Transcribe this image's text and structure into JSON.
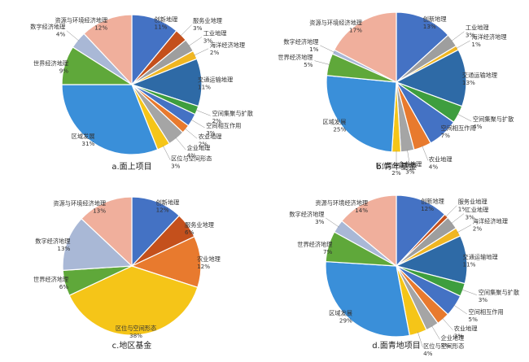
{
  "chart_data": [
    {
      "type": "pie",
      "title": "a.面上项目",
      "slices": [
        {
          "name": "创新地理",
          "value": 11,
          "pct": "11%",
          "color": "#4472C4"
        },
        {
          "name": "服务业地理",
          "value": 3,
          "pct": "3%",
          "color": "#C4501C"
        },
        {
          "name": "工业地理",
          "value": 3,
          "pct": "3%",
          "color": "#9E9E9E"
        },
        {
          "name": "海洋经济地理",
          "value": 2,
          "pct": "2%",
          "color": "#F0B622"
        },
        {
          "name": "交通运输地理",
          "value": 11,
          "pct": "11%",
          "color": "#2E6AA6"
        },
        {
          "name": "空间集聚与扩散",
          "value": 2,
          "pct": "2%",
          "color": "#3E9E3E"
        },
        {
          "name": "空间相互作用",
          "value": 3,
          "pct": "3%",
          "color": "#4472C4"
        },
        {
          "name": "农业地理",
          "value": 2,
          "pct": "2%",
          "color": "#E87A2E"
        },
        {
          "name": "企业地理",
          "value": 4,
          "pct": "4%",
          "color": "#A5A5A5"
        },
        {
          "name": "区位与空间形态",
          "value": 3,
          "pct": "3%",
          "color": "#F5C518"
        },
        {
          "name": "区域发展",
          "value": 31,
          "pct": "31%",
          "color": "#3A8FD9"
        },
        {
          "name": "世界经济地理",
          "value": 9,
          "pct": "9%",
          "color": "#5FA83A"
        },
        {
          "name": "数字经济地理",
          "value": 4,
          "pct": "4%",
          "color": "#A9B8D6"
        },
        {
          "name": "资源与环境经济地理",
          "value": 12,
          "pct": "12%",
          "color": "#F0AF9C"
        }
      ]
    },
    {
      "type": "pie",
      "title": "b.青年基金",
      "slices": [
        {
          "name": "创新地理",
          "value": 13,
          "pct": "13%",
          "color": "#4472C4"
        },
        {
          "name": "工业地理",
          "value": 3,
          "pct": "3%",
          "color": "#9E9E9E"
        },
        {
          "name": "海洋经济地理",
          "value": 1,
          "pct": "1%",
          "color": "#F0B622"
        },
        {
          "name": "交通运输地理",
          "value": 13,
          "pct": "13%",
          "color": "#2E6AA6"
        },
        {
          "name": "空间集聚与扩散",
          "value": 4,
          "pct": "4%",
          "color": "#3E9E3E"
        },
        {
          "name": "空间相互作用",
          "value": 7,
          "pct": "7%",
          "color": "#4472C4"
        },
        {
          "name": "农业地理",
          "value": 4,
          "pct": "4%",
          "color": "#E87A2E"
        },
        {
          "name": "企业地理",
          "value": 3,
          "pct": "3%",
          "color": "#A5A5A5"
        },
        {
          "name": "区位与空间形态",
          "value": 2,
          "pct": "2%",
          "color": "#F5C518"
        },
        {
          "name": "区域发展",
          "value": 25,
          "pct": "25%",
          "color": "#3A8FD9"
        },
        {
          "name": "世界经济地理",
          "value": 5,
          "pct": "5%",
          "color": "#5FA83A"
        },
        {
          "name": "数字经济地理",
          "value": 1,
          "pct": "1%",
          "color": "#A9B8D6"
        },
        {
          "name": "资源与环境经济地理",
          "value": 17,
          "pct": "17%",
          "color": "#F0AF9C"
        }
      ]
    },
    {
      "type": "pie",
      "title": "c.地区基金",
      "slices": [
        {
          "name": "创新地理",
          "value": 12,
          "pct": "12%",
          "color": "#4472C4"
        },
        {
          "name": "服务业地理",
          "value": 6,
          "pct": "6%",
          "color": "#C4501C"
        },
        {
          "name": "农业地理",
          "value": 12,
          "pct": "12%",
          "color": "#E87A2E"
        },
        {
          "name": "区位与空间形态",
          "value": 38,
          "pct": "38%",
          "color": "#F5C518"
        },
        {
          "name": "世界经济地理",
          "value": 6,
          "pct": "6%",
          "color": "#5FA83A"
        },
        {
          "name": "数字经济地理",
          "value": 13,
          "pct": "13%",
          "color": "#A9B8D6"
        },
        {
          "name": "资源与环境经济地理",
          "value": 13,
          "pct": "13%",
          "color": "#F0AF9C"
        }
      ]
    },
    {
      "type": "pie",
      "title": "d.面青地项目",
      "slices": [
        {
          "name": "创新地理",
          "value": 12,
          "pct": "12%",
          "color": "#4472C4"
        },
        {
          "name": "服务业地理",
          "value": 1,
          "pct": "1%",
          "color": "#C4501C"
        },
        {
          "name": "工业地理",
          "value": 3,
          "pct": "3%",
          "color": "#9E9E9E"
        },
        {
          "name": "海洋经济地理",
          "value": 2,
          "pct": "2%",
          "color": "#F0B622"
        },
        {
          "name": "交通运输地理",
          "value": 11,
          "pct": "11%",
          "color": "#2E6AA6"
        },
        {
          "name": "空间集聚与扩散",
          "value": 3,
          "pct": "3%",
          "color": "#3E9E3E"
        },
        {
          "name": "空间相互作用",
          "value": 5,
          "pct": "5%",
          "color": "#4472C4"
        },
        {
          "name": "农业地理",
          "value": 3,
          "pct": "3%",
          "color": "#E87A2E"
        },
        {
          "name": "企业地理",
          "value": 3,
          "pct": "3%",
          "color": "#A5A5A5"
        },
        {
          "name": "区位与空间形态",
          "value": 4,
          "pct": "4%",
          "color": "#F5C518"
        },
        {
          "name": "区域发展",
          "value": 29,
          "pct": "29%",
          "color": "#3A8FD9"
        },
        {
          "name": "世界经济地理",
          "value": 7,
          "pct": "7%",
          "color": "#5FA83A"
        },
        {
          "name": "数字经济地理",
          "value": 3,
          "pct": "3%",
          "color": "#A9B8D6"
        },
        {
          "name": "资源与环境经济地理",
          "value": 14,
          "pct": "14%",
          "color": "#F0AF9C"
        }
      ]
    }
  ]
}
